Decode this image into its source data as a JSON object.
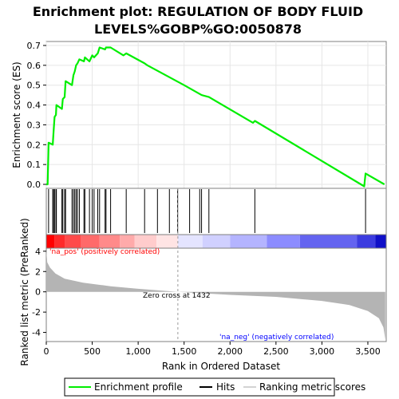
{
  "chart_data": {
    "type": "line",
    "title_lines": [
      "Enrichment plot: REGULATION OF BODY FLUID",
      "LEVELS%GOBP%GO:0050878"
    ],
    "ylabel_top": "Enrichment score (ES)",
    "ylabel_bottom": "Ranked list metric (PreRanked)",
    "xlabel": "Rank in Ordered Dataset",
    "xlim": [
      0,
      3700
    ],
    "x_ticks": [
      0,
      500,
      1000,
      1500,
      2000,
      2500,
      3000,
      3500
    ],
    "x_tick_labels": [
      "0",
      "500",
      "1,000",
      "1,500",
      "2,000",
      "2,500",
      "3,000",
      "3,500"
    ],
    "es_ylim": [
      -0.02,
      0.72
    ],
    "es_ticks": [
      0.0,
      0.1,
      0.2,
      0.3,
      0.4,
      0.5,
      0.6,
      0.7
    ],
    "es_tick_labels": [
      "0.0",
      "0.1",
      "0.2",
      "0.3",
      "0.4",
      "0.5",
      "0.6",
      "0.7"
    ],
    "metric_ylim": [
      -4.9,
      4.3
    ],
    "metric_ticks": [
      4,
      2,
      0,
      -2,
      -4
    ],
    "metric_tick_labels": [
      "4",
      "2",
      "0",
      "-2",
      "-4"
    ],
    "zero_cross": 1432,
    "zero_cross_label": "Zero cross at 1432",
    "pos_label": "'na_pos' (positively correlated)",
    "neg_label": "'na_neg' (negatively correlated)",
    "colors": {
      "es_line": "#00ee00",
      "pos_label": "#ff0000",
      "neg_label": "#0000ff",
      "metric_fill": "#b4b4b4",
      "hits": "#000000"
    },
    "es_points": [
      [
        0,
        0.0
      ],
      [
        15,
        0.0
      ],
      [
        25,
        0.21
      ],
      [
        70,
        0.2
      ],
      [
        80,
        0.27
      ],
      [
        90,
        0.34
      ],
      [
        105,
        0.35
      ],
      [
        110,
        0.4
      ],
      [
        170,
        0.38
      ],
      [
        180,
        0.43
      ],
      [
        200,
        0.44
      ],
      [
        210,
        0.52
      ],
      [
        280,
        0.5
      ],
      [
        295,
        0.55
      ],
      [
        310,
        0.57
      ],
      [
        325,
        0.6
      ],
      [
        340,
        0.61
      ],
      [
        360,
        0.63
      ],
      [
        410,
        0.62
      ],
      [
        420,
        0.64
      ],
      [
        470,
        0.62
      ],
      [
        500,
        0.65
      ],
      [
        520,
        0.64
      ],
      [
        560,
        0.66
      ],
      [
        580,
        0.69
      ],
      [
        640,
        0.68
      ],
      [
        650,
        0.69
      ],
      [
        700,
        0.69
      ],
      [
        840,
        0.65
      ],
      [
        870,
        0.66
      ],
      [
        1070,
        0.61
      ],
      [
        1100,
        0.6
      ],
      [
        1500,
        0.5
      ],
      [
        1690,
        0.45
      ],
      [
        1770,
        0.44
      ],
      [
        2250,
        0.31
      ],
      [
        2270,
        0.32
      ],
      [
        3460,
        -0.01
      ],
      [
        3475,
        0.055
      ],
      [
        3680,
        0.0
      ]
    ],
    "hits": [
      25,
      70,
      80,
      90,
      105,
      110,
      170,
      180,
      200,
      210,
      280,
      295,
      310,
      325,
      340,
      360,
      410,
      420,
      470,
      500,
      520,
      560,
      580,
      640,
      650,
      700,
      870,
      1070,
      1210,
      1340,
      1430,
      1560,
      1670,
      1690,
      1770,
      2270,
      3475
    ],
    "metric_curve": [
      [
        0,
        4.1
      ],
      [
        10,
        2.9
      ],
      [
        40,
        2.4
      ],
      [
        100,
        1.8
      ],
      [
        200,
        1.3
      ],
      [
        400,
        0.9
      ],
      [
        700,
        0.55
      ],
      [
        1000,
        0.3
      ],
      [
        1432,
        0.0
      ],
      [
        2000,
        -0.3
      ],
      [
        2500,
        -0.5
      ],
      [
        3000,
        -0.9
      ],
      [
        3300,
        -1.3
      ],
      [
        3500,
        -1.9
      ],
      [
        3620,
        -2.6
      ],
      [
        3670,
        -3.5
      ],
      [
        3690,
        -4.7
      ]
    ],
    "legend": [
      {
        "key": "enrichment",
        "label": "Enrichment profile"
      },
      {
        "key": "hits",
        "label": "Hits"
      },
      {
        "key": "ranking",
        "label": "Ranking metric scores"
      }
    ]
  }
}
